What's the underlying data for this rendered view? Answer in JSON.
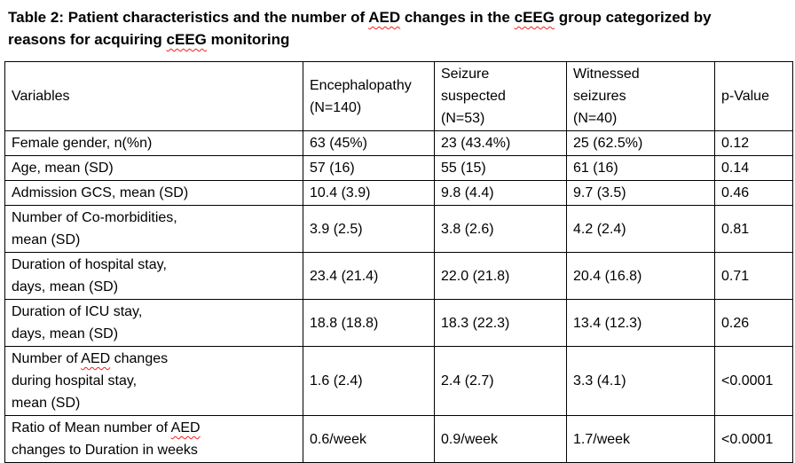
{
  "colors": {
    "background": "#ffffff",
    "text": "#000000",
    "table_border": "#000000",
    "spellcheck_underline": "#ff1a1a"
  },
  "caption": {
    "line1_segments": [
      {
        "text": "Table 2: Patient characteristics and the number of ",
        "spellcheck": false
      },
      {
        "text": "AED",
        "spellcheck": true
      },
      {
        "text": " changes in the ",
        "spellcheck": false
      },
      {
        "text": "cEEG",
        "spellcheck": true
      },
      {
        "text": " group categorized by",
        "spellcheck": false
      }
    ],
    "line2_segments": [
      {
        "text": "reasons for acquiring ",
        "spellcheck": false
      },
      {
        "text": "cEEG",
        "spellcheck": true
      },
      {
        "text": " monitoring",
        "spellcheck": false
      }
    ]
  },
  "table": {
    "headers": [
      "Variables",
      "Encephalopathy\n(N=140)",
      "Seizure\nsuspected\n(N=53)",
      "Witnessed\nseizures\n(N=40)",
      "p-Value"
    ],
    "rows": [
      {
        "variable": "Female gender, n(%n)",
        "values": [
          "63 (45%)",
          "23 (43.4%)",
          "25 (62.5%)"
        ],
        "p": "0.12"
      },
      {
        "variable": "Age, mean (SD)",
        "values": [
          "57 (16)",
          "55 (15)",
          "61 (16)"
        ],
        "p": "0.14"
      },
      {
        "variable": "Admission GCS, mean (SD)",
        "values": [
          "10.4 (3.9)",
          "9.8 (4.4)",
          "9.7 (3.5)"
        ],
        "p": "0.46"
      },
      {
        "variable": "Number of Co-morbidities,\nmean (SD)",
        "values": [
          "3.9 (2.5)",
          "3.8 (2.6)",
          "4.2 (2.4)"
        ],
        "p": "0.81"
      },
      {
        "variable": "Duration of hospital stay,\ndays, mean (SD)",
        "values": [
          "23.4 (21.4)",
          "22.0 (21.8)",
          "20.4 (16.8)"
        ],
        "p": "0.71"
      },
      {
        "variable": "Duration of ICU stay,\ndays, mean (SD)",
        "values": [
          "18.8 (18.8)",
          "18.3 (22.3)",
          "13.4 (12.3)"
        ],
        "p": "0.26"
      },
      {
        "variable_segments": [
          {
            "text": "Number of ",
            "spellcheck": false
          },
          {
            "text": "AED",
            "spellcheck": true
          },
          {
            "text": " changes\nduring hospital stay,\nmean (SD)",
            "spellcheck": false
          }
        ],
        "values": [
          "1.6 (2.4)",
          "2.4 (2.7)",
          "3.3 (4.1)"
        ],
        "p": "<0.0001"
      },
      {
        "variable_segments": [
          {
            "text": "Ratio of Mean number of ",
            "spellcheck": false
          },
          {
            "text": "AED",
            "spellcheck": true
          },
          {
            "text": "\nchanges to Duration in weeks",
            "spellcheck": false
          }
        ],
        "values": [
          "0.6/week",
          "0.9/week",
          "1.7/week"
        ],
        "p": "<0.0001"
      }
    ]
  }
}
